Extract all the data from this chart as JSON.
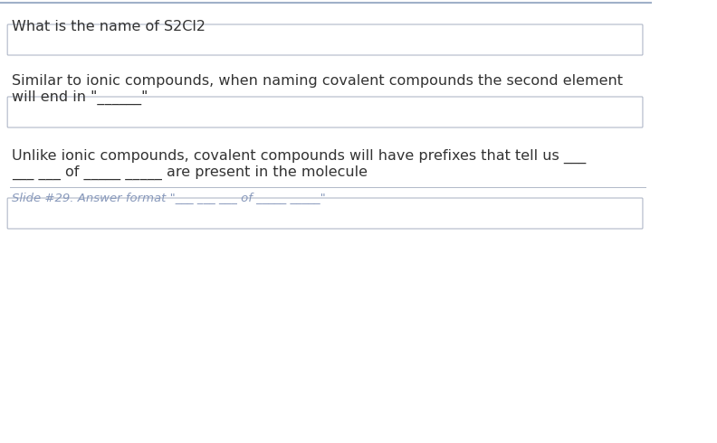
{
  "bg_color": "#ffffff",
  "border_color": "#c8d0d8",
  "top_border_color": "#a0b0c8",
  "question1_text": "What is the name of S2Cl2",
  "question2_line1": "Similar to ionic compounds, when naming covalent compounds the second element",
  "question2_line2": "will end in \"______\"",
  "question3_line1": "Unlike ionic compounds, covalent compounds will have prefixes that tell us ___",
  "question3_line2": "___ ___ of _____ _____ are present in the molecule",
  "slide_note": "Slide #29. Answer format \"___ ___ ___ of _____ _____\"",
  "text_color": "#333333",
  "note_color": "#8899bb",
  "input_box_color": "#ffffff",
  "input_box_border": "#b0b8c8",
  "font_size_question": 11.5,
  "font_size_note": 9.5
}
